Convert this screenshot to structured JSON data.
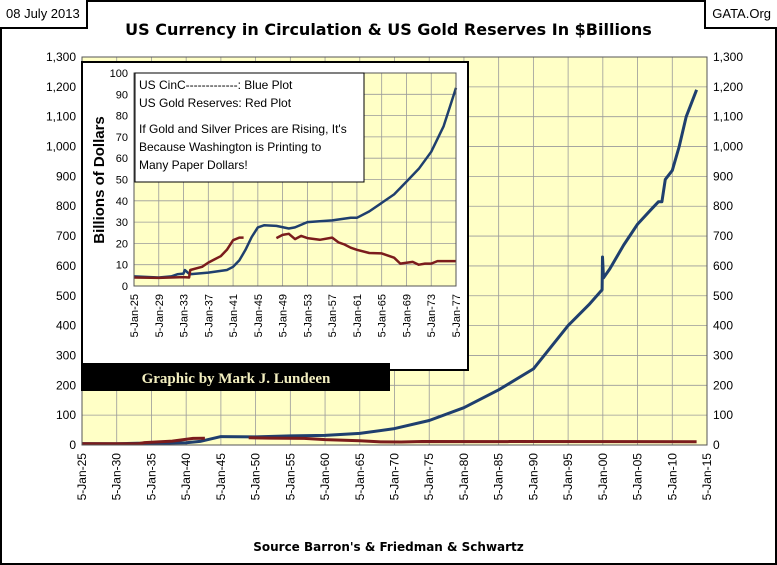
{
  "header": {
    "date": "08 July 2013",
    "site": "GATA.Org"
  },
  "colors": {
    "background": "#FFFFC6",
    "grid": "#9A9A9A",
    "currency": "#1F3F6E",
    "gold": "#7B1C1C",
    "credit_box": "#000000",
    "credit_text": "#F3EFC0"
  },
  "credit": "Graphic by Mark J. Lundeen",
  "chart_data": [
    {
      "type": "line",
      "title": "US Currency in Circulation & US Gold Reserves In $Billions",
      "xlabel": "Source Barron's & Friedman & Schwartz",
      "ylabel": "",
      "xlim": [
        1925,
        2015
      ],
      "ylim": [
        0,
        1300
      ],
      "grid": true,
      "y_ticks": [
        "0",
        "100",
        "200",
        "300",
        "400",
        "500",
        "600",
        "700",
        "800",
        "900",
        "1,000",
        "1,100",
        "1,200",
        "1,300"
      ],
      "x_ticks": [
        "5-Jan-25",
        "5-Jan-30",
        "5-Jan-35",
        "5-Jan-40",
        "5-Jan-45",
        "5-Jan-50",
        "5-Jan-55",
        "5-Jan-60",
        "5-Jan-65",
        "5-Jan-70",
        "5-Jan-75",
        "5-Jan-80",
        "5-Jan-85",
        "5-Jan-90",
        "5-Jan-95",
        "5-Jan-00",
        "5-Jan-05",
        "5-Jan-10",
        "5-Jan-15"
      ],
      "series": [
        {
          "key": "currency",
          "x": [
            1925,
            1930,
            1933,
            1935,
            1940,
            1942,
            1945,
            1950,
            1955,
            1960,
            1965,
            1970,
            1975,
            1980,
            1985,
            1990,
            1995,
            1998,
            1999.9,
            1999.95,
            2000.1,
            2001,
            2003,
            2005,
            2007,
            2008,
            2008.5,
            2009,
            2010,
            2011,
            2012,
            2013.5
          ],
          "y": [
            4.8,
            4.5,
            5.7,
            5.6,
            7.8,
            12,
            28,
            27,
            30.5,
            32,
            39,
            55,
            82,
            125,
            185,
            255,
            400,
            470,
            520,
            630,
            560,
            590,
            670,
            740,
            790,
            815,
            815,
            890,
            920,
            1000,
            1100,
            1190
          ]
        },
        {
          "key": "gold",
          "x": [
            1925,
            1933,
            1934,
            1938,
            1941,
            1942.7,
            null,
            1949,
            1952,
            1957,
            1960,
            1965,
            1968,
            1971,
            1974,
            2013.5
          ],
          "y": [
            4,
            4,
            8,
            13,
            22,
            22.7,
            null,
            24,
            23,
            22,
            18,
            14,
            10.4,
            10.2,
            11.6,
            11
          ]
        }
      ]
    },
    {
      "type": "line",
      "legend_lines": [
        "US CinC-------------: Blue Plot",
        "US Gold Reserves: Red Plot"
      ],
      "annotation": [
        "If Gold and Silver Prices are Rising, It's",
        "Because Washington is Printing to",
        "Many Paper Dollars!"
      ],
      "ylabel": "Billions of Dollars",
      "xlim": [
        1925,
        1977
      ],
      "ylim": [
        0,
        100
      ],
      "grid": true,
      "y_ticks": [
        "0",
        "10",
        "20",
        "30",
        "40",
        "50",
        "60",
        "70",
        "80",
        "90",
        "100"
      ],
      "x_ticks": [
        "5-Jan-25",
        "5-Jan-29",
        "5-Jan-33",
        "5-Jan-37",
        "5-Jan-41",
        "5-Jan-45",
        "5-Jan-49",
        "5-Jan-53",
        "5-Jan-57",
        "5-Jan-61",
        "5-Jan-65",
        "5-Jan-69",
        "5-Jan-73",
        "5-Jan-77"
      ],
      "series": [
        {
          "key": "currency",
          "x": [
            1925,
            1929,
            1931,
            1932,
            1933,
            1933.2,
            1934,
            1937,
            1940,
            1941,
            1942,
            1943,
            1944,
            1945,
            1946,
            1948,
            1950,
            1951,
            1953,
            1957,
            1960,
            1961,
            1963,
            1965,
            1967,
            1969,
            1971,
            1973,
            1975,
            1976,
            1977
          ],
          "y": [
            4.5,
            4.0,
            4.5,
            5.5,
            5.8,
            7.5,
            5.5,
            6.3,
            7.5,
            9,
            12,
            17,
            23,
            27.5,
            28.5,
            28.2,
            27,
            27.5,
            30,
            30.8,
            32,
            32,
            35,
            39,
            43,
            49,
            55,
            63,
            75,
            84,
            93
          ]
        },
        {
          "key": "gold",
          "x": [
            1925,
            1929,
            1933,
            1933.9,
            1934.1,
            1936,
            1937,
            1938,
            1939,
            1940,
            1941,
            1942,
            1942.7,
            null,
            1948,
            1949,
            1950,
            1951,
            1952,
            1953,
            1955,
            1957,
            1958,
            1959,
            1960,
            1961,
            1963,
            1965,
            1967,
            1968,
            1970,
            1971,
            1972,
            1973,
            1974,
            1977
          ],
          "y": [
            4,
            3.8,
            4.2,
            4,
            7.5,
            9,
            11,
            12.5,
            14,
            17,
            21.5,
            22.7,
            22.7,
            null,
            22.5,
            24,
            24.5,
            22,
            23.5,
            22.5,
            21.7,
            22.7,
            20.5,
            19.5,
            18,
            17,
            15.5,
            15.3,
            13.3,
            10.5,
            11.3,
            10,
            10.5,
            10.5,
            11.7,
            11.7
          ]
        }
      ]
    }
  ]
}
